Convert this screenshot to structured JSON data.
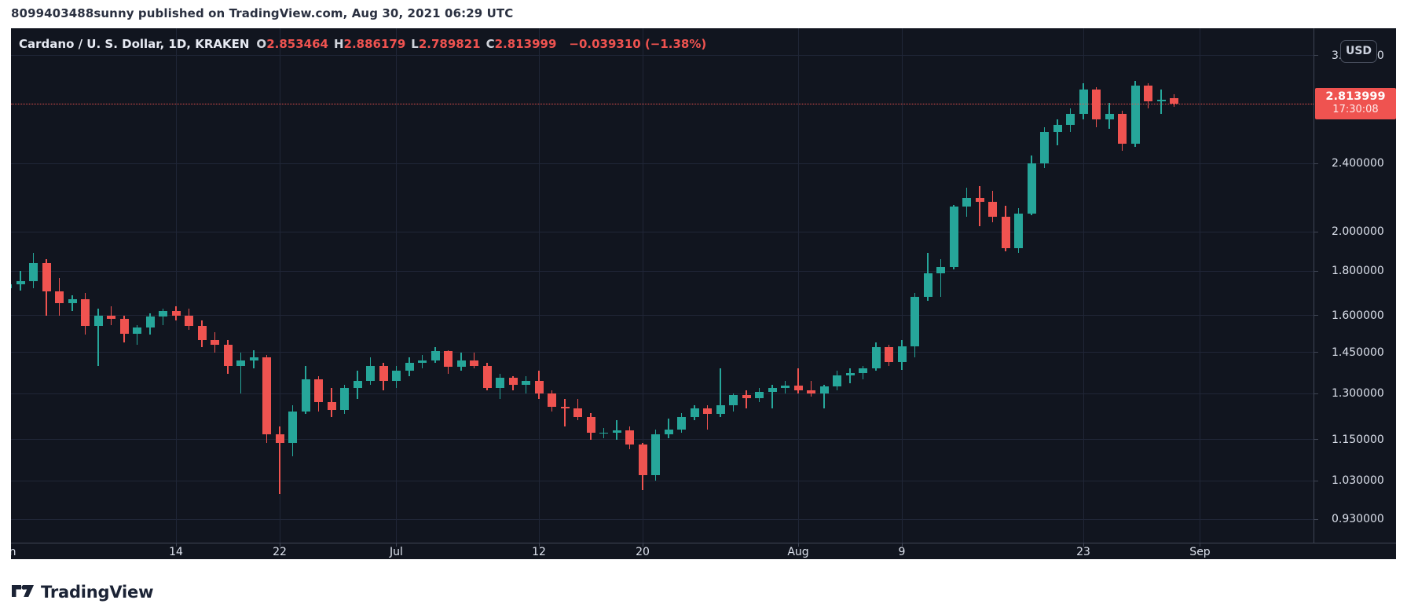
{
  "top_bar": {
    "publish_text": "8099403488sunny published on TradingView.com, Aug 30, 2021 06:29 UTC"
  },
  "header": {
    "symbol": "Cardano / U. S. Dollar, 1D, KRAKEN",
    "ohlc": [
      {
        "key": "O",
        "value": "2.853464"
      },
      {
        "key": "H",
        "value": "2.886179"
      },
      {
        "key": "L",
        "value": "2.789821"
      },
      {
        "key": "C",
        "value": "2.813999"
      }
    ],
    "change": "−0.039310 (−1.38%)"
  },
  "price_axis": {
    "currency_badge": "USD",
    "labels": [
      {
        "text": "3.200000",
        "price": 3.2
      },
      {
        "text": "2.400000",
        "price": 2.4
      },
      {
        "text": "2.000000",
        "price": 2.0
      },
      {
        "text": "1.800000",
        "price": 1.8
      },
      {
        "text": "1.600000",
        "price": 1.6
      },
      {
        "text": "1.450000",
        "price": 1.45
      },
      {
        "text": "1.300000",
        "price": 1.3
      },
      {
        "text": "1.150000",
        "price": 1.15
      },
      {
        "text": "1.030000",
        "price": 1.03
      },
      {
        "text": "0.930000",
        "price": 0.93
      }
    ],
    "current": {
      "price_text": "2.813999",
      "countdown": "17:30:08",
      "price": 2.813999
    }
  },
  "time_axis": {
    "labels": [
      {
        "text": "Jun",
        "index": 0
      },
      {
        "text": "14",
        "index": 13
      },
      {
        "text": "22",
        "index": 21
      },
      {
        "text": "Jul",
        "index": 30
      },
      {
        "text": "12",
        "index": 41
      },
      {
        "text": "20",
        "index": 49
      },
      {
        "text": "Aug",
        "index": 61
      },
      {
        "text": "9",
        "index": 69
      },
      {
        "text": "23",
        "index": 83
      },
      {
        "text": "Sep",
        "index": 92
      }
    ]
  },
  "footer": {
    "brand": "TradingView"
  },
  "colors": {
    "up": "#26a69a",
    "down": "#ef5350",
    "accent_red": "#ef5350",
    "background": "#11151f",
    "grid": "#202637",
    "axis_line": "#3f4554",
    "axis_text": "#dce1ec"
  },
  "chart_data": {
    "type": "candlestick",
    "title": "Cardano / U. S. Dollar, 1D, KRAKEN",
    "symbol": "ADAUSD",
    "exchange": "KRAKEN",
    "interval": "1D",
    "scale": "log",
    "legend_position": "top-left",
    "grid": true,
    "start_date": "2021-06-01",
    "end_date": "2021-08-30",
    "ylim": [
      0.87,
      3.3
    ],
    "current_price": 2.813999,
    "countdown": "17:30:08",
    "change": -0.03931,
    "change_pct": -1.38,
    "open": 2.853464,
    "high": 2.886179,
    "low": 2.789821,
    "close": 2.813999,
    "y_ticks": [
      3.2,
      2.4,
      2.0,
      1.8,
      1.6,
      1.45,
      1.3,
      1.15,
      1.03,
      0.93
    ],
    "x_ticks": [
      "Jun",
      "14",
      "22",
      "Jul",
      "12",
      "20",
      "Aug",
      "9",
      "23",
      "Sep"
    ],
    "candles": [
      [
        1.72,
        1.76,
        1.7,
        1.74
      ],
      [
        1.74,
        1.8,
        1.71,
        1.755
      ],
      [
        1.755,
        1.89,
        1.72,
        1.84
      ],
      [
        1.84,
        1.86,
        1.6,
        1.705
      ],
      [
        1.705,
        1.77,
        1.6,
        1.655
      ],
      [
        1.655,
        1.69,
        1.62,
        1.67
      ],
      [
        1.67,
        1.7,
        1.52,
        1.555
      ],
      [
        1.555,
        1.63,
        1.4,
        1.6
      ],
      [
        1.6,
        1.64,
        1.56,
        1.585
      ],
      [
        1.585,
        1.6,
        1.49,
        1.525
      ],
      [
        1.525,
        1.56,
        1.48,
        1.55
      ],
      [
        1.55,
        1.61,
        1.52,
        1.595
      ],
      [
        1.595,
        1.63,
        1.56,
        1.62
      ],
      [
        1.62,
        1.64,
        1.58,
        1.6
      ],
      [
        1.6,
        1.63,
        1.54,
        1.555
      ],
      [
        1.555,
        1.58,
        1.47,
        1.5
      ],
      [
        1.5,
        1.53,
        1.45,
        1.48
      ],
      [
        1.48,
        1.5,
        1.37,
        1.4
      ],
      [
        1.4,
        1.45,
        1.3,
        1.42
      ],
      [
        1.42,
        1.46,
        1.39,
        1.43
      ],
      [
        1.43,
        1.44,
        1.14,
        1.165
      ],
      [
        1.165,
        1.19,
        0.995,
        1.14
      ],
      [
        1.14,
        1.26,
        1.1,
        1.24
      ],
      [
        1.24,
        1.4,
        1.23,
        1.35
      ],
      [
        1.35,
        1.36,
        1.24,
        1.27
      ],
      [
        1.27,
        1.32,
        1.22,
        1.245
      ],
      [
        1.245,
        1.33,
        1.23,
        1.32
      ],
      [
        1.32,
        1.38,
        1.28,
        1.345
      ],
      [
        1.345,
        1.43,
        1.33,
        1.4
      ],
      [
        1.4,
        1.41,
        1.31,
        1.345
      ],
      [
        1.345,
        1.4,
        1.32,
        1.38
      ],
      [
        1.38,
        1.43,
        1.36,
        1.41
      ],
      [
        1.41,
        1.44,
        1.39,
        1.42
      ],
      [
        1.42,
        1.47,
        1.41,
        1.455
      ],
      [
        1.455,
        1.46,
        1.37,
        1.395
      ],
      [
        1.395,
        1.45,
        1.38,
        1.42
      ],
      [
        1.42,
        1.45,
        1.39,
        1.4
      ],
      [
        1.4,
        1.41,
        1.31,
        1.32
      ],
      [
        1.32,
        1.37,
        1.28,
        1.355
      ],
      [
        1.355,
        1.36,
        1.31,
        1.33
      ],
      [
        1.33,
        1.36,
        1.3,
        1.345
      ],
      [
        1.345,
        1.38,
        1.28,
        1.3
      ],
      [
        1.3,
        1.31,
        1.24,
        1.255
      ],
      [
        1.255,
        1.28,
        1.19,
        1.25
      ],
      [
        1.25,
        1.28,
        1.21,
        1.22
      ],
      [
        1.22,
        1.235,
        1.15,
        1.17
      ],
      [
        1.17,
        1.185,
        1.155,
        1.172
      ],
      [
        1.172,
        1.21,
        1.15,
        1.178
      ],
      [
        1.178,
        1.19,
        1.12,
        1.135
      ],
      [
        1.135,
        1.14,
        1.005,
        1.045
      ],
      [
        1.045,
        1.18,
        1.03,
        1.165
      ],
      [
        1.165,
        1.215,
        1.155,
        1.18
      ],
      [
        1.18,
        1.235,
        1.17,
        1.22
      ],
      [
        1.22,
        1.26,
        1.21,
        1.25
      ],
      [
        1.25,
        1.26,
        1.18,
        1.23
      ],
      [
        1.23,
        1.39,
        1.22,
        1.26
      ],
      [
        1.26,
        1.3,
        1.24,
        1.295
      ],
      [
        1.295,
        1.31,
        1.25,
        1.285
      ],
      [
        1.285,
        1.32,
        1.27,
        1.305
      ],
      [
        1.305,
        1.33,
        1.25,
        1.32
      ],
      [
        1.32,
        1.345,
        1.3,
        1.327
      ],
      [
        1.327,
        1.39,
        1.3,
        1.31
      ],
      [
        1.31,
        1.345,
        1.29,
        1.3
      ],
      [
        1.3,
        1.33,
        1.25,
        1.325
      ],
      [
        1.325,
        1.38,
        1.31,
        1.365
      ],
      [
        1.365,
        1.39,
        1.335,
        1.372
      ],
      [
        1.372,
        1.4,
        1.35,
        1.39
      ],
      [
        1.39,
        1.49,
        1.38,
        1.47
      ],
      [
        1.47,
        1.48,
        1.4,
        1.415
      ],
      [
        1.415,
        1.5,
        1.385,
        1.475
      ],
      [
        1.475,
        1.7,
        1.43,
        1.68
      ],
      [
        1.68,
        1.89,
        1.665,
        1.79
      ],
      [
        1.79,
        1.86,
        1.68,
        1.82
      ],
      [
        1.82,
        2.15,
        1.81,
        2.14
      ],
      [
        2.14,
        2.25,
        2.08,
        2.19
      ],
      [
        2.19,
        2.26,
        2.03,
        2.165
      ],
      [
        2.165,
        2.23,
        2.05,
        2.08
      ],
      [
        2.08,
        2.145,
        1.9,
        1.915
      ],
      [
        1.915,
        2.13,
        1.89,
        2.1
      ],
      [
        2.1,
        2.45,
        2.09,
        2.4
      ],
      [
        2.4,
        2.64,
        2.37,
        2.61
      ],
      [
        2.61,
        2.7,
        2.52,
        2.66
      ],
      [
        2.66,
        2.78,
        2.61,
        2.74
      ],
      [
        2.74,
        2.97,
        2.7,
        2.92
      ],
      [
        2.92,
        2.94,
        2.64,
        2.7
      ],
      [
        2.7,
        2.82,
        2.63,
        2.74
      ],
      [
        2.74,
        2.76,
        2.48,
        2.53
      ],
      [
        2.53,
        2.99,
        2.51,
        2.95
      ],
      [
        2.95,
        2.97,
        2.78,
        2.83
      ],
      [
        2.83,
        2.92,
        2.74,
        2.845
      ],
      [
        2.853464,
        2.886179,
        2.789821,
        2.813999
      ]
    ]
  }
}
